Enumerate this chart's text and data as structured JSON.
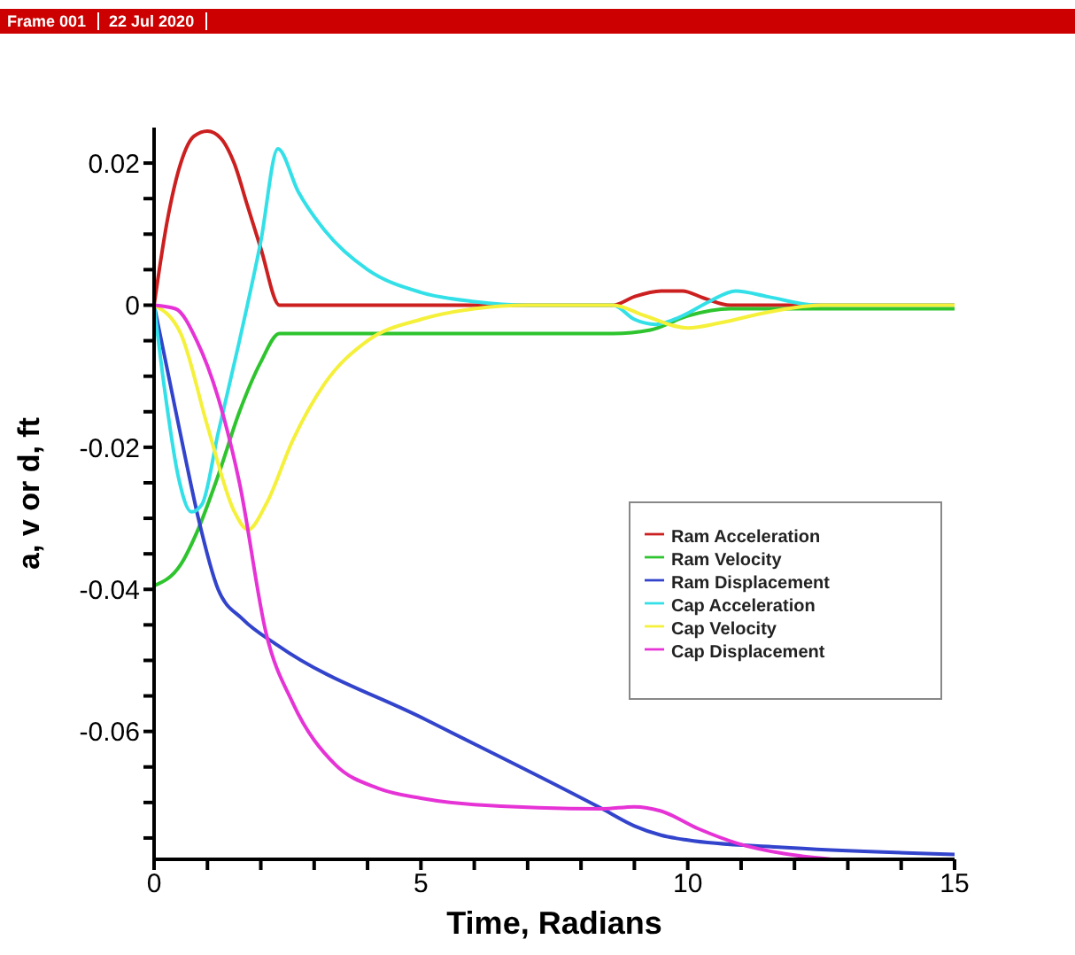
{
  "chart_data": {
    "type": "line",
    "xlabel": "Time, Radians",
    "ylabel": "a, v or d, ft",
    "annotations": [
      "Frame 001",
      "22 Jul 2020"
    ],
    "xlim": [
      0,
      15
    ],
    "ylim": [
      -0.078,
      0.025
    ],
    "xticks": [
      0,
      {
        "value": 1,
        "label": null
      },
      {
        "value": 2,
        "label": null
      },
      {
        "value": 3,
        "label": null
      },
      {
        "value": 4,
        "label": null
      },
      5,
      {
        "value": 6,
        "label": null
      },
      {
        "value": 7,
        "label": null
      },
      {
        "value": 8,
        "label": null
      },
      {
        "value": 9,
        "label": null
      },
      10,
      {
        "value": 11,
        "label": null
      },
      {
        "value": 12,
        "label": null
      },
      {
        "value": 13,
        "label": null
      },
      {
        "value": 14,
        "label": null
      },
      15
    ],
    "yticks": [
      {
        "value": -0.075,
        "label": null
      },
      {
        "value": -0.07,
        "label": null
      },
      {
        "value": -0.065,
        "label": null
      },
      -0.06,
      {
        "value": -0.055,
        "label": null
      },
      {
        "value": -0.05,
        "label": null
      },
      {
        "value": -0.045,
        "label": null
      },
      -0.04,
      {
        "value": -0.035,
        "label": null
      },
      {
        "value": -0.03,
        "label": null
      },
      {
        "value": -0.025,
        "label": null
      },
      -0.02,
      {
        "value": -0.015,
        "label": null
      },
      {
        "value": -0.01,
        "label": null
      },
      {
        "value": -0.005,
        "label": null
      },
      0,
      {
        "value": 0.005,
        "label": null
      },
      {
        "value": 0.01,
        "label": null
      },
      {
        "value": 0.015,
        "label": null
      },
      0.02
    ],
    "grid": false,
    "legend": "right",
    "marker": "none",
    "line_style": "solid",
    "series": [
      {
        "name": "Ram Acceleration",
        "color": "#cc1f1f",
        "x": [
          0,
          0.25,
          0.5,
          0.75,
          1.0,
          1.25,
          1.5,
          1.75,
          2.0,
          2.35,
          8.6,
          9.0,
          9.5,
          9.9,
          10.3,
          10.8,
          15
        ],
        "values": [
          0,
          0.012,
          0.02,
          0.0238,
          0.0245,
          0.0235,
          0.02,
          0.014,
          0.008,
          0,
          0,
          0.0012,
          0.002,
          0.002,
          0.001,
          0,
          0
        ]
      },
      {
        "name": "Ram Velocity",
        "color": "#2ec42e",
        "x": [
          0,
          0.5,
          0.8,
          1.2,
          1.6,
          2.0,
          2.35,
          8.6,
          9.3,
          10.0,
          10.8,
          15
        ],
        "values": [
          -0.0395,
          -0.0365,
          -0.032,
          -0.024,
          -0.015,
          -0.008,
          -0.004,
          -0.004,
          -0.0035,
          -0.0015,
          -0.0005,
          -0.0005
        ]
      },
      {
        "name": "Ram Displacement",
        "color": "#3344cc",
        "x": [
          0,
          0.3,
          0.6,
          0.83,
          1.2,
          1.66,
          2.32,
          5.08,
          8.4,
          9.0,
          9.5,
          10.0,
          11.7,
          15
        ],
        "values": [
          0,
          -0.011,
          -0.022,
          -0.03,
          -0.04,
          -0.0442,
          -0.0479,
          -0.0583,
          -0.0709,
          -0.0733,
          -0.0746,
          -0.0753,
          -0.0763,
          -0.0773
        ]
      },
      {
        "name": "Cap Acceleration",
        "color": "#33e0e8",
        "x": [
          0,
          0.2,
          0.45,
          0.7,
          0.9,
          1.2,
          1.6,
          2.0,
          2.32,
          2.7,
          3.2,
          4.0,
          5.0,
          6.0,
          7.0,
          8.6,
          9.0,
          9.4,
          9.9,
          10.4,
          10.9,
          11.5,
          12.4,
          15
        ],
        "values": [
          0,
          -0.012,
          -0.024,
          -0.0291,
          -0.028,
          -0.018,
          -0.005,
          0.009,
          0.022,
          0.016,
          0.0105,
          0.005,
          0.0018,
          0.0005,
          0,
          0,
          -0.002,
          -0.0027,
          -0.0015,
          0.0005,
          0.002,
          0.0012,
          0,
          0
        ]
      },
      {
        "name": "Cap Velocity",
        "color": "#f5f03a",
        "x": [
          0,
          0.5,
          1.0,
          1.5,
          1.76,
          2.1,
          2.6,
          3.2,
          4.0,
          5.0,
          6.0,
          7.0,
          8.6,
          9.2,
          10.0,
          10.6,
          11.5,
          12.5,
          15
        ],
        "values": [
          0,
          -0.004,
          -0.017,
          -0.029,
          -0.0316,
          -0.028,
          -0.019,
          -0.011,
          -0.005,
          -0.002,
          -0.0005,
          0,
          0,
          -0.0015,
          -0.0032,
          -0.0025,
          -0.001,
          0,
          0
        ]
      },
      {
        "name": "Cap Displacement",
        "color": "#e633d6",
        "x": [
          0,
          0.4,
          0.8,
          1.2,
          1.6,
          2.1,
          2.6,
          3.4,
          4.2,
          5.0,
          6.0,
          8.4,
          9.0,
          9.5,
          10.2,
          10.95,
          11.8,
          12.7
        ],
        "values": [
          0,
          -0.0005,
          -0.005,
          -0.013,
          -0.025,
          -0.0462,
          -0.056,
          -0.0647,
          -0.068,
          -0.0694,
          -0.0703,
          -0.0709,
          -0.0706,
          -0.0712,
          -0.0737,
          -0.0758,
          -0.0772,
          -0.078
        ]
      }
    ]
  }
}
